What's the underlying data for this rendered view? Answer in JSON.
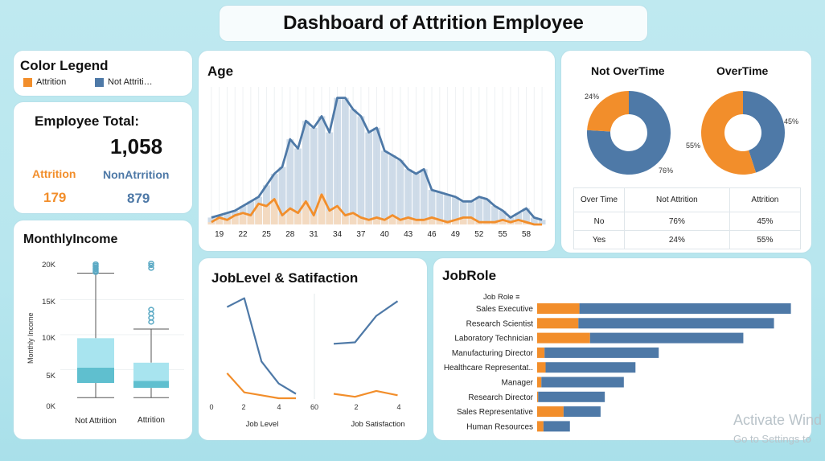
{
  "dashboard_title": "Dashboard of Attrition Employee",
  "colors": {
    "attrition": "#f28e2b",
    "not_attrition": "#4e79a7",
    "bg": "#b7e6ee"
  },
  "legend": {
    "title": "Color Legend",
    "attrition": "Attrition",
    "not_attrition": "Not Attriti…"
  },
  "totals": {
    "title": "Employee Total:",
    "total": "1,058",
    "attrition_label": "Attrition",
    "attrition_value": "179",
    "non_label": "NonAtrrition",
    "non_value": "879"
  },
  "monthly_income": {
    "title": "MonthlyIncome",
    "y_label": "Monthly Income",
    "y_ticks": [
      "20K",
      "15K",
      "10K",
      "5K",
      "0K"
    ],
    "x_labels": [
      "Not Attrition",
      "Attrition"
    ]
  },
  "age": {
    "title": "Age",
    "x_ticks": [
      "19",
      "22",
      "25",
      "28",
      "31",
      "34",
      "37",
      "40",
      "43",
      "46",
      "49",
      "52",
      "55",
      "58"
    ]
  },
  "overtime": {
    "pie1_title": "Not OverTime",
    "pie1_labels": [
      "24%",
      "76%"
    ],
    "pie2_title": "OverTime",
    "pie2_labels": [
      "55%",
      "45%"
    ],
    "table": {
      "headers": [
        "Over Time",
        "Not Attrition",
        "Attrition"
      ],
      "rows": [
        [
          "No",
          "76%",
          "45%"
        ],
        [
          "Yes",
          "24%",
          "55%"
        ]
      ]
    }
  },
  "joblevel": {
    "title": "JobLevel & Satifaction",
    "x1_label": "Job Level",
    "x2_label": "Job Satisfaction",
    "x1_ticks": [
      "0",
      "2",
      "4",
      "60"
    ],
    "x2_ticks": [
      "2",
      "4"
    ]
  },
  "jobrole": {
    "title": "JobRole",
    "header": "Job Role"
  },
  "watermark": {
    "line1": "Activate Wind",
    "line2": "Go to Settings to"
  },
  "chart_data": [
    {
      "type": "area",
      "title": "Age",
      "x": [
        18,
        19,
        20,
        21,
        22,
        23,
        24,
        25,
        26,
        27,
        28,
        29,
        30,
        31,
        32,
        33,
        34,
        35,
        36,
        37,
        38,
        39,
        40,
        41,
        42,
        43,
        44,
        45,
        46,
        47,
        48,
        49,
        50,
        51,
        52,
        53,
        54,
        55,
        56,
        57,
        58,
        59,
        60
      ],
      "series": [
        {
          "name": "Not Attrition",
          "values": [
            3,
            4,
            5,
            6,
            8,
            10,
            12,
            17,
            22,
            25,
            37,
            33,
            45,
            42,
            47,
            40,
            55,
            55,
            50,
            47,
            40,
            42,
            32,
            30,
            28,
            24,
            22,
            24,
            15,
            14,
            13,
            12,
            10,
            10,
            12,
            11,
            8,
            6,
            3,
            5,
            7,
            3,
            2
          ]
        },
        {
          "name": "Attrition",
          "values": [
            1,
            3,
            2,
            4,
            5,
            4,
            9,
            8,
            11,
            4,
            7,
            5,
            10,
            4,
            13,
            6,
            8,
            4,
            5,
            3,
            2,
            3,
            2,
            4,
            2,
            3,
            2,
            2,
            3,
            2,
            1,
            2,
            3,
            3,
            1,
            1,
            1,
            2,
            1,
            2,
            1,
            0,
            0
          ]
        }
      ],
      "xlim": [
        18,
        60
      ]
    },
    {
      "type": "pie",
      "title": "Not OverTime",
      "categories": [
        "Attrition",
        "Not Attrition"
      ],
      "values": [
        24,
        76
      ]
    },
    {
      "type": "pie",
      "title": "OverTime",
      "categories": [
        "Attrition",
        "Not Attrition"
      ],
      "values": [
        55,
        45
      ]
    },
    {
      "type": "line",
      "title": "",
      "xlabel": "Job Level",
      "x": [
        1,
        2,
        3,
        4,
        5
      ],
      "series": [
        {
          "name": "Not Attrition",
          "values": [
            62,
            68,
            25,
            10,
            3
          ]
        },
        {
          "name": "Attrition",
          "values": [
            17,
            4,
            2,
            0,
            0
          ]
        }
      ]
    },
    {
      "type": "line",
      "title": "",
      "xlabel": "Job Satisfaction",
      "x": [
        1,
        2,
        3,
        4
      ],
      "series": [
        {
          "name": "Not Attrition",
          "values": [
            37,
            38,
            56,
            66
          ]
        },
        {
          "name": "Attrition",
          "values": [
            3,
            1,
            5,
            2
          ]
        }
      ]
    },
    {
      "type": "bar",
      "title": "JobRole",
      "categories": [
        "Sales Executive",
        "Research Scientist",
        "Laboratory Technician",
        "Manufacturing Director",
        "Healthcare Representat..",
        "Manager",
        "Research Director",
        "Sales Representative",
        "Human Resources"
      ],
      "series": [
        {
          "name": "Attrition",
          "values": [
            40,
            39,
            50,
            7,
            8,
            4,
            1,
            25,
            6
          ]
        },
        {
          "name": "Not Attrition",
          "values": [
            200,
            185,
            145,
            108,
            85,
            78,
            63,
            35,
            25
          ]
        }
      ]
    },
    {
      "type": "box",
      "title": "MonthlyIncome",
      "categories": [
        "Not Attrition",
        "Attrition"
      ],
      "series": [
        {
          "name": "Not Attrition",
          "min": 1000,
          "q1": 3100,
          "median": 5300,
          "q3": 9500,
          "whisker_high": 18800
        },
        {
          "name": "Attrition",
          "min": 1000,
          "q1": 2400,
          "median": 3400,
          "q3": 6000,
          "whisker_high": 10800
        }
      ],
      "ylim": [
        0,
        20000
      ]
    }
  ]
}
